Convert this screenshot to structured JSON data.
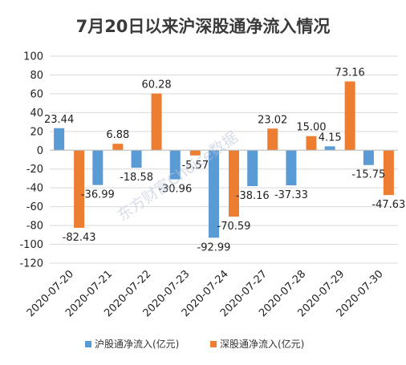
{
  "chart_data": {
    "type": "bar",
    "title": "7月20日以来沪深股通净流入情况",
    "categories": [
      "2020-07-20",
      "2020-07-21",
      "2020-07-22",
      "2020-07-23",
      "2020-07-24",
      "2020-07-27",
      "2020-07-28",
      "2020-07-29",
      "2020-07-30"
    ],
    "series": [
      {
        "name": "沪股通净流入(亿元)",
        "color": "#5b9bd5",
        "values": [
          23.44,
          -36.99,
          -18.58,
          -30.96,
          -92.99,
          -38.16,
          -37.33,
          4.15,
          -15.75
        ],
        "labels": [
          "23.44",
          "-36.99",
          "-18.58",
          "-30.96",
          "-92.99",
          "-38.16",
          "-37.33",
          "4.15",
          "-15.75"
        ]
      },
      {
        "name": "深股通净流入(亿元)",
        "color": "#ed7d31",
        "values": [
          -82.43,
          6.88,
          60.28,
          -5.57,
          -70.59,
          23.02,
          15.0,
          73.16,
          -47.63
        ],
        "labels": [
          "-82.43",
          "6.88",
          "60.28",
          "-5.57",
          "-70.59",
          "23.02",
          "15.00",
          "73.16",
          "-47.63"
        ]
      }
    ],
    "ylim": [
      -120,
      100
    ],
    "yticks": [
      100,
      80,
      60,
      40,
      20,
      0,
      -20,
      -40,
      -60,
      -80,
      -100,
      -120
    ],
    "ytick_labels": [
      "100",
      "80",
      "60",
      "40",
      "20",
      "0",
      "-20",
      "-40",
      "-60",
      "-80",
      "-100",
      "-120"
    ],
    "grid": true,
    "legend_position": "bottom",
    "watermark": "东方财富Choice数据"
  }
}
